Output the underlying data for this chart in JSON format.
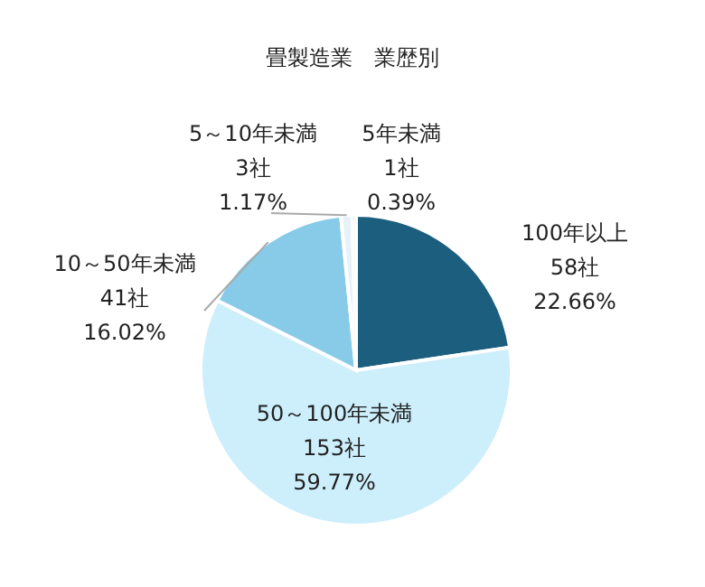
{
  "chart_data": {
    "type": "pie",
    "title": "畳製造業　業歴別",
    "categories": [
      "100年以上",
      "50～100年未満",
      "10～50年未満",
      "5～10年未満",
      "5年未満"
    ],
    "values": [
      58,
      153,
      41,
      3,
      1
    ],
    "colors": [
      "#1b5e7e",
      "#cdeefb",
      "#88cbe8",
      "#e6f2f7",
      "#1b5e7e"
    ],
    "value_labels": [
      "58社\n22.66%",
      "153社\n59.77%",
      "41社\n16.02%",
      "3社\n1.17%",
      "1社\n0.39%"
    ]
  }
}
